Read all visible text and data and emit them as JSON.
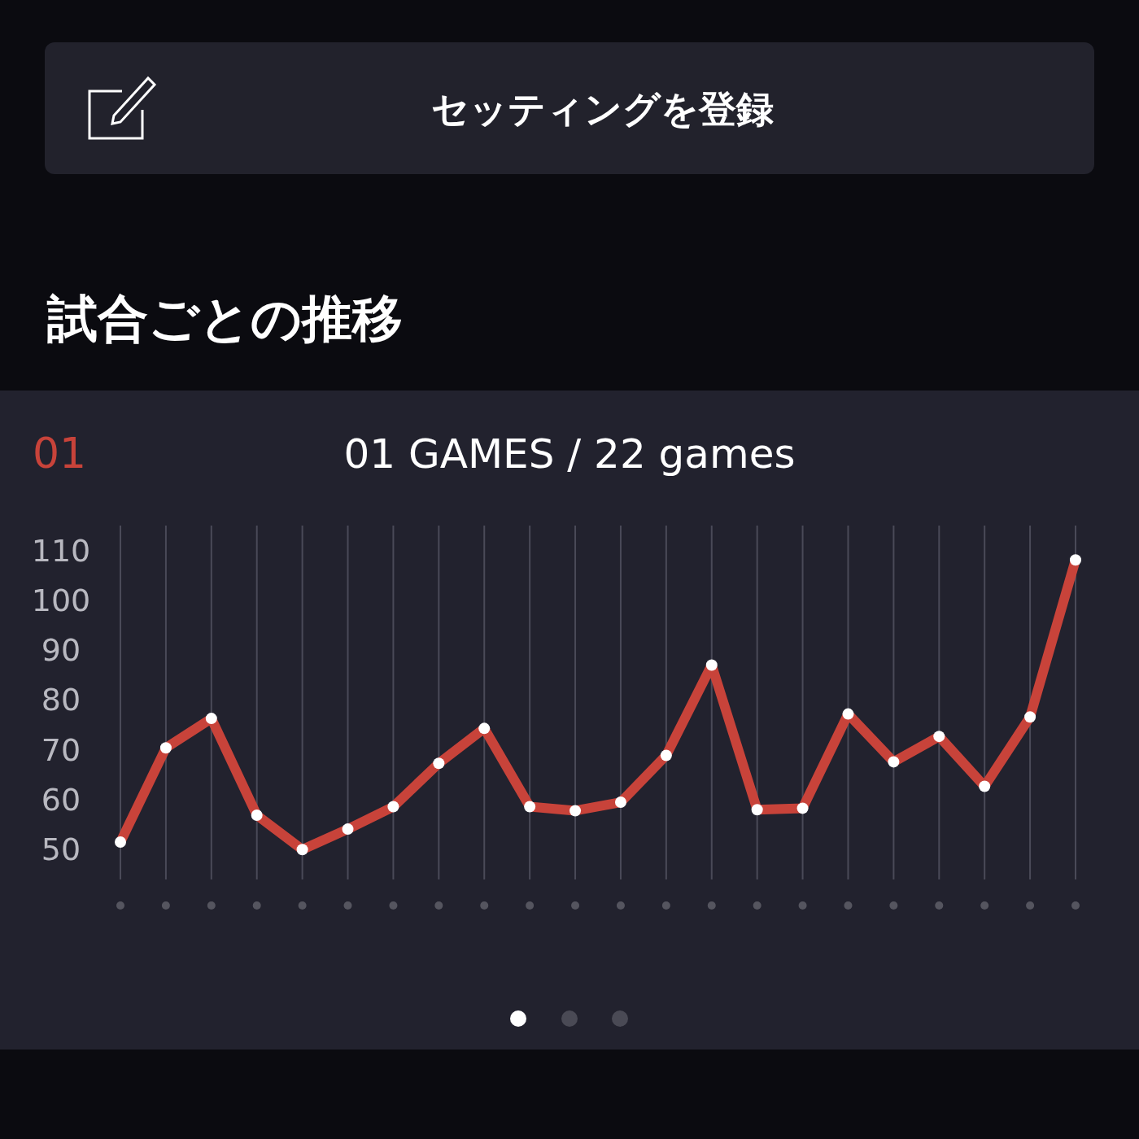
{
  "chart_data": {
    "type": "line",
    "title": "01 GAMES / 22 games",
    "annotations": [
      "セッティングを登録",
      "試合ごとの推移",
      "01"
    ],
    "categories": [
      null,
      null,
      null,
      null,
      null,
      null,
      null,
      null,
      null,
      null,
      null,
      null,
      null,
      null,
      null,
      null,
      null,
      null,
      null,
      null,
      null,
      null
    ],
    "series": [
      {
        "color": "#c8433a",
        "values": [
          51.5,
          70.4,
          76.3,
          56.9,
          50,
          54.1,
          58.6,
          67.3,
          74.3,
          58.6,
          57.8,
          59.5,
          68.9,
          87,
          58,
          58.3,
          77.2,
          67.6,
          72.7,
          62.7,
          76.6,
          108.1
        ]
      }
    ],
    "ylim": [
      44,
      115
    ],
    "yticks": [
      50,
      60,
      70,
      80,
      90,
      100,
      110
    ],
    "grid": "x",
    "marker": "circle",
    "line_style": "solid"
  }
}
